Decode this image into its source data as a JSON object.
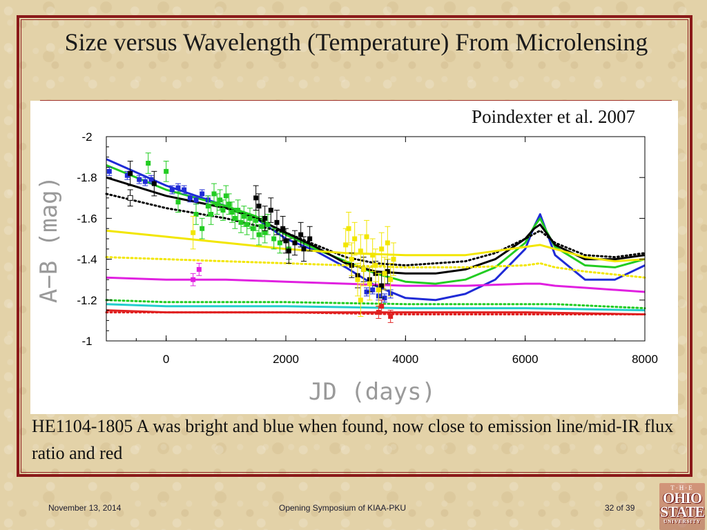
{
  "slide": {
    "title": "Size versus Wavelength (Temperature) From Microlensing",
    "citation": "Poindexter et al. 2007",
    "caption": "HE1104-1805 A was bright and blue when found, now close to emission line/mid-IR flux ratio and red",
    "footer_date": "November 13, 2014",
    "footer_center": "Opening Symposium of KIAA-PKU",
    "footer_page": "32 of 39",
    "logo": {
      "the": "T·H·E",
      "ohio": "OHIO",
      "state": "STATE",
      "university": "UNIVERSITY"
    },
    "frame_color": "#8b1a1a"
  },
  "chart_data": {
    "type": "scatter",
    "title": "",
    "xlabel": "JD (days)",
    "ylabel": "A−B (mag)",
    "xlim": [
      -1000,
      8000
    ],
    "ylim": [
      -2,
      -1
    ],
    "y_inverted": true,
    "x_ticks": [
      0,
      2000,
      4000,
      6000,
      8000
    ],
    "y_ticks": [
      -2,
      -1.8,
      -1.6,
      -1.4,
      -1.2,
      -1
    ],
    "y_tick_labels": [
      "-2",
      "-1.8",
      "-1.6",
      "-1.4",
      "-1.2",
      "-1"
    ],
    "grid": false,
    "legend": "none",
    "model_curves": [
      {
        "color": "#1f2bd6",
        "style": "solid",
        "x": [
          -1000,
          0,
          1000,
          1500,
          2000,
          2500,
          3000,
          3500,
          4000,
          4500,
          5000,
          5500,
          6000,
          6150,
          6250,
          6350,
          6500,
          7000,
          7500,
          8000
        ],
        "y": [
          -1.89,
          -1.76,
          -1.66,
          -1.6,
          -1.5,
          -1.44,
          -1.36,
          -1.27,
          -1.21,
          -1.2,
          -1.23,
          -1.3,
          -1.45,
          -1.56,
          -1.62,
          -1.54,
          -1.42,
          -1.3,
          -1.3,
          -1.37
        ]
      },
      {
        "color": "#22cc22",
        "style": "solid",
        "x": [
          -1000,
          0,
          1000,
          1500,
          2000,
          2500,
          3000,
          3500,
          4000,
          4500,
          5000,
          5500,
          6000,
          6150,
          6250,
          6350,
          6500,
          7000,
          7500,
          8000
        ],
        "y": [
          -1.86,
          -1.74,
          -1.66,
          -1.61,
          -1.52,
          -1.45,
          -1.39,
          -1.33,
          -1.29,
          -1.28,
          -1.3,
          -1.36,
          -1.48,
          -1.56,
          -1.6,
          -1.54,
          -1.46,
          -1.37,
          -1.36,
          -1.4
        ]
      },
      {
        "color": "#000000",
        "style": "solid",
        "x": [
          -1000,
          0,
          1000,
          1500,
          2000,
          2500,
          3000,
          3500,
          4000,
          4500,
          5000,
          5500,
          6000,
          6150,
          6250,
          6350,
          6500,
          7000,
          7500,
          8000
        ],
        "y": [
          -1.8,
          -1.71,
          -1.65,
          -1.6,
          -1.53,
          -1.46,
          -1.38,
          -1.34,
          -1.33,
          -1.33,
          -1.35,
          -1.4,
          -1.5,
          -1.55,
          -1.57,
          -1.53,
          -1.47,
          -1.4,
          -1.4,
          -1.42
        ]
      },
      {
        "color": "#000000",
        "style": "dotted",
        "x": [
          -1000,
          0,
          1000,
          2000,
          2500,
          3000,
          3500,
          4000,
          5000,
          5500,
          6000,
          6250,
          6500,
          7000,
          7500,
          8000
        ],
        "y": [
          -1.72,
          -1.65,
          -1.6,
          -1.53,
          -1.47,
          -1.41,
          -1.38,
          -1.37,
          -1.39,
          -1.43,
          -1.5,
          -1.54,
          -1.48,
          -1.42,
          -1.41,
          -1.43
        ]
      },
      {
        "color": "#f2e600",
        "style": "solid",
        "x": [
          -1000,
          0,
          1000,
          2000,
          3000,
          4000,
          5000,
          5500,
          6000,
          6250,
          6500,
          7000,
          7500,
          8000
        ],
        "y": [
          -1.54,
          -1.51,
          -1.48,
          -1.45,
          -1.43,
          -1.42,
          -1.42,
          -1.44,
          -1.46,
          -1.47,
          -1.45,
          -1.41,
          -1.39,
          -1.4
        ]
      },
      {
        "color": "#f2e600",
        "style": "dotted",
        "x": [
          -1000,
          0,
          1000,
          2000,
          3000,
          4000,
          5000,
          6000,
          6250,
          6500,
          7000,
          8000
        ],
        "y": [
          -1.41,
          -1.4,
          -1.39,
          -1.38,
          -1.37,
          -1.36,
          -1.36,
          -1.37,
          -1.38,
          -1.36,
          -1.34,
          -1.31
        ]
      },
      {
        "color": "#e020e0",
        "style": "solid",
        "x": [
          -1000,
          0,
          1000,
          2000,
          3000,
          4000,
          5000,
          6000,
          6250,
          6500,
          7000,
          8000
        ],
        "y": [
          -1.31,
          -1.3,
          -1.3,
          -1.29,
          -1.28,
          -1.27,
          -1.27,
          -1.28,
          -1.28,
          -1.27,
          -1.26,
          -1.24
        ]
      },
      {
        "color": "#22cc22",
        "style": "dotted",
        "x": [
          -1000,
          0,
          2000,
          4000,
          6000,
          6250,
          6500,
          8000
        ],
        "y": [
          -1.2,
          -1.19,
          -1.19,
          -1.18,
          -1.18,
          -1.18,
          -1.18,
          -1.16
        ]
      },
      {
        "color": "#22cccc",
        "style": "solid",
        "x": [
          -1000,
          0,
          2000,
          4000,
          6000,
          8000
        ],
        "y": [
          -1.18,
          -1.17,
          -1.17,
          -1.16,
          -1.16,
          -1.15
        ]
      },
      {
        "color": "#e02020",
        "style": "solid",
        "x": [
          -1000,
          0,
          2000,
          4000,
          6000,
          8000
        ],
        "y": [
          -1.15,
          -1.14,
          -1.14,
          -1.14,
          -1.14,
          -1.13
        ]
      },
      {
        "color": "#e02020",
        "style": "dotted",
        "x": [
          -1000,
          0,
          2000,
          4000,
          6000,
          8000
        ],
        "y": [
          -1.14,
          -1.14,
          -1.14,
          -1.13,
          -1.13,
          -1.13
        ]
      }
    ],
    "series": [
      {
        "color": "#1f2bd6",
        "err": 0.02,
        "points": [
          [
            -950,
            -1.83
          ],
          [
            -650,
            -1.81
          ],
          [
            -450,
            -1.79
          ],
          [
            -350,
            -1.78
          ],
          [
            -250,
            -1.79
          ],
          [
            100,
            -1.74
          ],
          [
            200,
            -1.75
          ],
          [
            300,
            -1.74
          ],
          [
            400,
            -1.7
          ],
          [
            500,
            -1.69
          ],
          [
            600,
            -1.72
          ],
          [
            700,
            -1.69
          ],
          [
            3350,
            -1.24
          ],
          [
            3450,
            -1.25
          ],
          [
            3550,
            -1.22
          ],
          [
            3650,
            -1.21
          ],
          [
            3750,
            -1.23
          ]
        ]
      },
      {
        "color": "#22cc22",
        "err": 0.05,
        "points": [
          [
            -300,
            -1.87
          ],
          [
            0,
            -1.83
          ],
          [
            200,
            -1.68
          ],
          [
            500,
            -1.62
          ],
          [
            600,
            -1.55
          ],
          [
            700,
            -1.66
          ],
          [
            750,
            -1.62
          ],
          [
            800,
            -1.72
          ],
          [
            850,
            -1.67
          ],
          [
            900,
            -1.69
          ],
          [
            950,
            -1.64
          ],
          [
            1000,
            -1.71
          ],
          [
            1050,
            -1.67
          ],
          [
            1100,
            -1.63
          ],
          [
            1150,
            -1.6
          ],
          [
            1200,
            -1.64
          ],
          [
            1250,
            -1.58
          ],
          [
            1300,
            -1.61
          ],
          [
            1350,
            -1.57
          ],
          [
            1400,
            -1.6
          ],
          [
            1450,
            -1.55
          ],
          [
            1500,
            -1.59
          ],
          [
            1550,
            -1.52
          ],
          [
            1600,
            -1.56
          ],
          [
            1650,
            -1.53
          ],
          [
            1700,
            -1.57
          ],
          [
            1800,
            -1.5
          ],
          [
            1900,
            -1.48
          ],
          [
            2050,
            -1.45
          ]
        ]
      },
      {
        "color": "#000000",
        "err": 0.06,
        "points": [
          [
            -600,
            -1.82
          ],
          [
            -200,
            -1.77
          ],
          [
            1500,
            -1.7
          ],
          [
            1550,
            -1.66
          ],
          [
            1650,
            -1.6
          ],
          [
            1750,
            -1.64
          ],
          [
            1850,
            -1.58
          ],
          [
            1950,
            -1.55
          ],
          [
            2000,
            -1.49
          ],
          [
            2050,
            -1.44
          ],
          [
            2150,
            -1.48
          ],
          [
            2250,
            -1.52
          ],
          [
            2300,
            -1.45
          ],
          [
            2400,
            -1.5
          ],
          [
            3100,
            -1.37
          ],
          [
            3200,
            -1.32
          ],
          [
            3300,
            -1.35
          ],
          [
            3400,
            -1.3
          ],
          [
            3500,
            -1.33
          ],
          [
            3600,
            -1.27
          ],
          [
            3700,
            -1.34
          ]
        ]
      },
      {
        "color": "#000000",
        "err": 0.04,
        "hollow": true,
        "points": [
          [
            -600,
            -1.7
          ]
        ]
      },
      {
        "color": "#f2e600",
        "err": 0.08,
        "points": [
          [
            450,
            -1.53
          ],
          [
            3000,
            -1.47
          ],
          [
            3050,
            -1.55
          ],
          [
            3100,
            -1.4
          ],
          [
            3150,
            -1.5
          ],
          [
            3200,
            -1.3
          ],
          [
            3250,
            -1.44
          ],
          [
            3300,
            -1.35
          ],
          [
            3350,
            -1.51
          ],
          [
            3400,
            -1.28
          ],
          [
            3450,
            -1.42
          ],
          [
            3500,
            -1.37
          ],
          [
            3550,
            -1.25
          ],
          [
            3600,
            -1.45
          ],
          [
            3650,
            -1.33
          ],
          [
            3700,
            -1.48
          ],
          [
            3750,
            -1.3
          ],
          [
            3800,
            -1.4
          ],
          [
            3250,
            -1.2
          ]
        ]
      },
      {
        "color": "#e020e0",
        "err": 0.03,
        "points": [
          [
            450,
            -1.3
          ],
          [
            550,
            -1.35
          ]
        ]
      },
      {
        "color": "#e02020",
        "err": 0.03,
        "points": [
          [
            3550,
            -1.14
          ],
          [
            3600,
            -1.17
          ],
          [
            3750,
            -1.12
          ]
        ]
      }
    ]
  }
}
